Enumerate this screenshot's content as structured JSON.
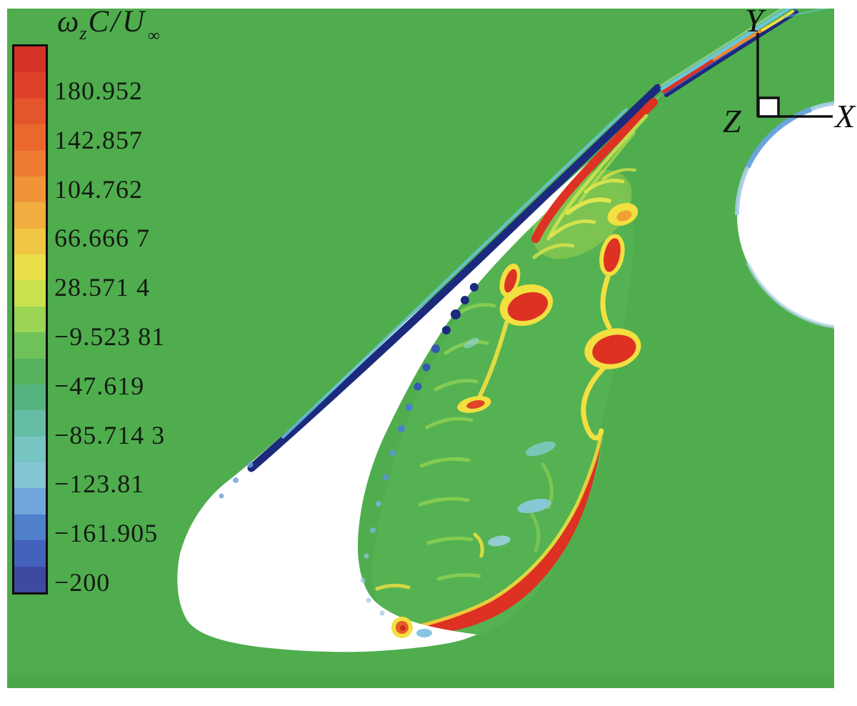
{
  "figure": {
    "description": "CFD contour plot of non-dimensional spanwise vorticity around an airfoil at high angle of attack"
  },
  "colorbar": {
    "title_parts": {
      "omega": "ω",
      "omega_sub": "z",
      "c": "C",
      "slash": "/",
      "u": "U",
      "u_sub": "∞"
    },
    "tick_labels": [
      "180.952",
      "142.857",
      "104.762",
      "66.666 7",
      "28.571 4",
      "−9.523 81",
      "−47.619",
      "−85.714 3",
      "−123.81",
      "−161.905",
      "−200"
    ],
    "colors": [
      "#d63227",
      "#dd4229",
      "#e4552b",
      "#ea682e",
      "#ee7d33",
      "#f0943a",
      "#f1ad40",
      "#f0c745",
      "#eadf4a",
      "#c9e24e",
      "#9ad554",
      "#6ec258",
      "#55b25d",
      "#55b47f",
      "#64bda4",
      "#77c5c2",
      "#85c6d6",
      "#6fa6dc",
      "#507fcc",
      "#4462bb",
      "#3c4ba0"
    ],
    "range": [
      -200,
      200
    ]
  },
  "axes_indicator": {
    "x_label": "X",
    "y_label": "Y",
    "z_label": "Z"
  },
  "palette": {
    "background_green": "#4fad4e",
    "inner_green": "#5cba58",
    "navy": "#1c2a7d",
    "blue": "#3558b2",
    "mid_blue": "#4a7ecd",
    "light_blue": "#8fc0e4",
    "cyan": "#6cc6d8",
    "teal": "#7fc9c2",
    "red": "#dd3123",
    "orange": "#ef8a34",
    "yellow": "#f2e040",
    "yellow_green": "#cde84f",
    "pale_wisp": "#a6dd55",
    "rim_blue": "#a9cdea",
    "rim_blue_strong": "#5e9fd8",
    "axis_black": "#101010",
    "text": "#121a12"
  },
  "chart_data": {
    "type": "contour",
    "quantity_label": "ωzC/U∞",
    "quantity_description": "non-dimensional spanwise vorticity contour field around an airfoil at high angle of attack",
    "colorbar_range": [
      -200,
      200
    ],
    "n_color_levels": 21,
    "labeled_levels": [
      180.952,
      142.857,
      104.762,
      66.6667,
      28.5714,
      -9.52381,
      -47.619,
      -85.7143,
      -123.81,
      -161.905,
      -200
    ],
    "legend_position": "left",
    "orientation_triad": [
      "X",
      "Y",
      "Z"
    ],
    "depicted_features": [
      "white airfoil section at high incidence with sharp edge pointing to the upper right",
      "dark navy attached boundary layer strip along the windward (upper-left) surface with a thin cyan outer band",
      "thin multicolored wake streak (navy/blue/red/yellow/cyan) leaving the sharp edge toward the top-right corner",
      "red positive-vorticity shear-layer streak hugging the lee side near the sharp edge",
      "string of red vortex cores with yellow halos shed into the separated region (around x 700-890, y 290-510)",
      "long curved red vorticity band with yellow fringe along the lower-right boundary of the recirculation zone, sharpening to a tip near (843,600)",
      "dotted navy-to-light-blue separation line along the lee surface of the airfoil",
      "pale green and yellow-green wisps plus scattered cyan patches inside the recirculation zone",
      "small concentric yellow/orange vortex dot near the trailing lower surface (563,878)",
      "white circular cutout at the mid-right edge with a light blue rim"
    ]
  }
}
